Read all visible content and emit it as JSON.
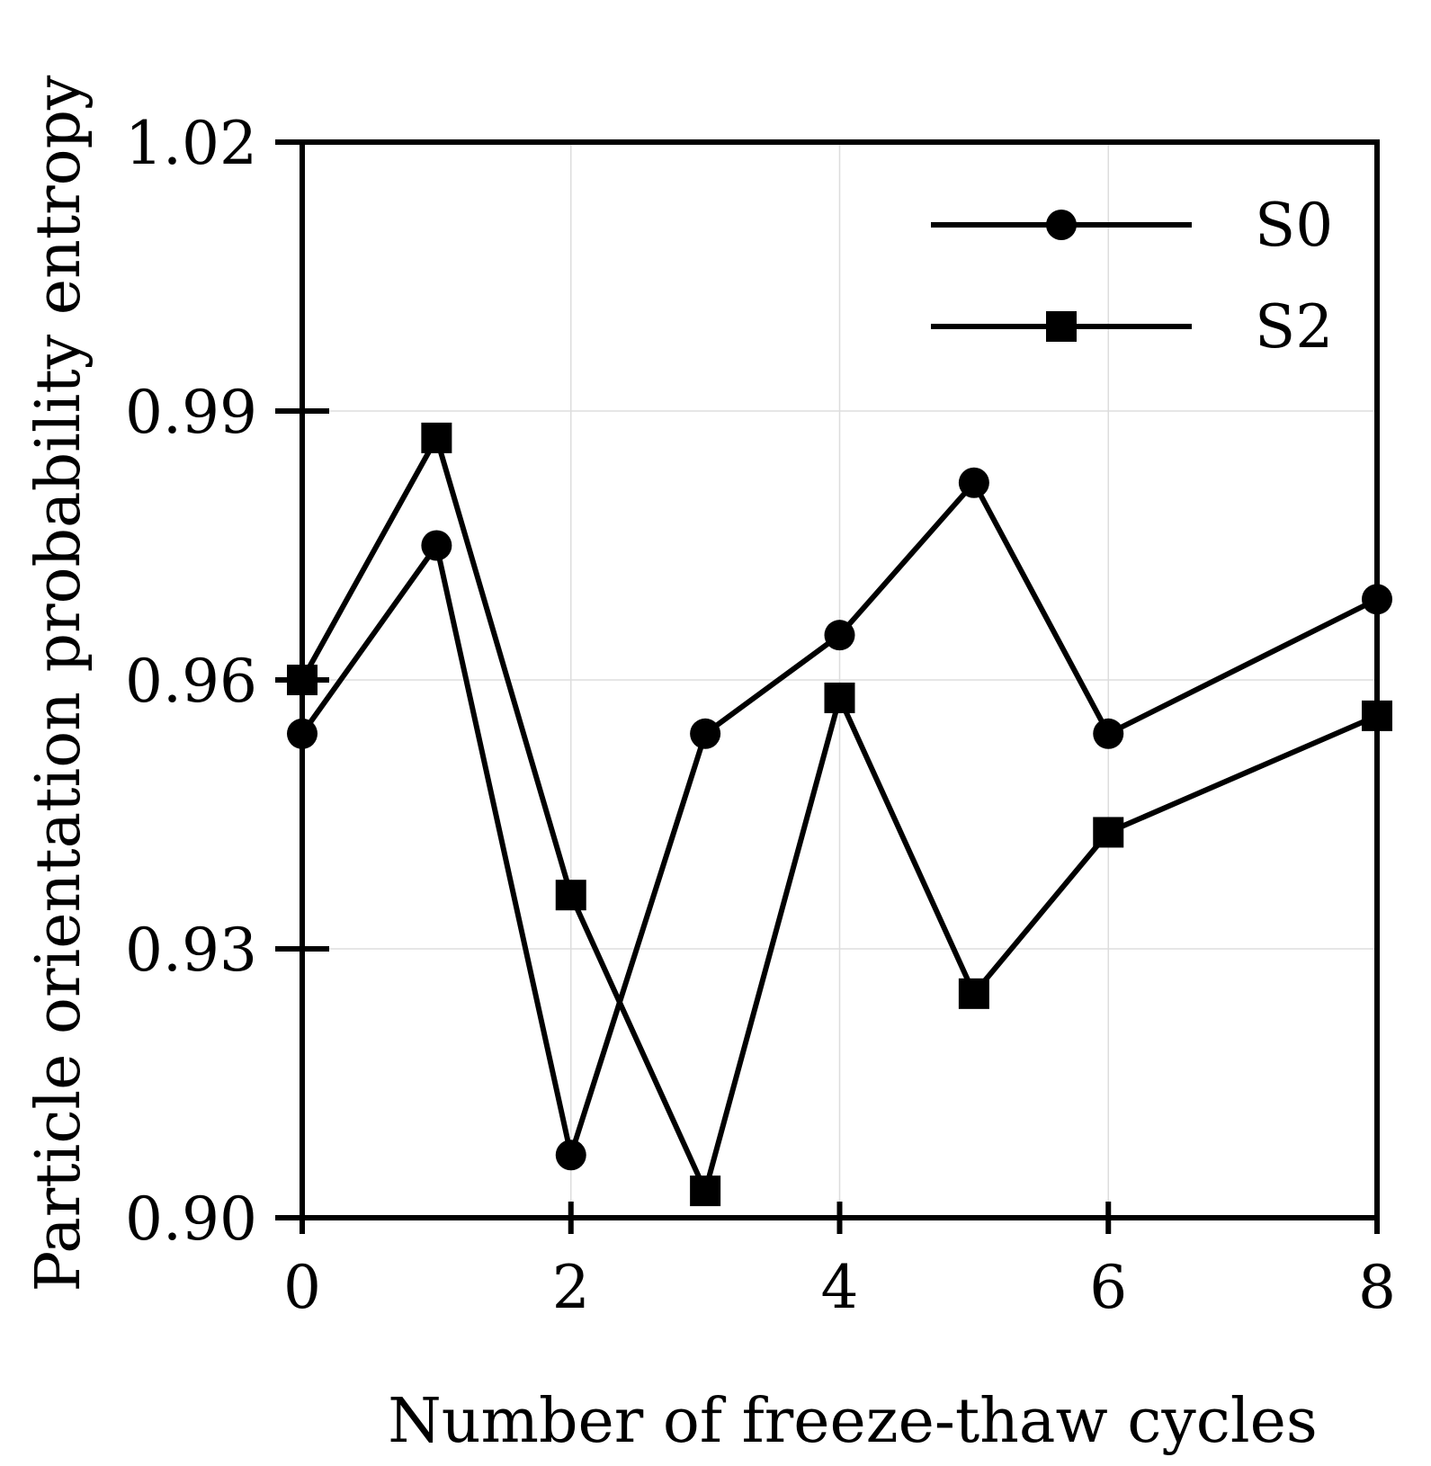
{
  "chart_data": {
    "type": "line",
    "title": "",
    "xlabel": "Number of freeze-thaw cycles",
    "ylabel": "Particle orientation probability entropy",
    "xlim": [
      0,
      8
    ],
    "ylim": [
      0.9,
      1.02
    ],
    "x_ticks": [
      0,
      2,
      4,
      6,
      8
    ],
    "x_tick_labels": [
      "0",
      "2",
      "4",
      "6",
      "8"
    ],
    "y_ticks": [
      0.9,
      0.93,
      0.96,
      0.99,
      1.02
    ],
    "y_tick_labels": [
      "0.90",
      "0.93",
      "0.96",
      "0.99",
      "1.02"
    ],
    "grid": true,
    "legend_position": "top-right",
    "series": [
      {
        "name": "S0",
        "marker": "circle",
        "x": [
          0,
          1,
          2,
          3,
          4,
          5,
          6,
          8
        ],
        "values": [
          0.954,
          0.975,
          0.907,
          0.954,
          0.965,
          0.982,
          0.954,
          0.969
        ]
      },
      {
        "name": "S2",
        "marker": "square",
        "x": [
          0,
          1,
          2,
          3,
          4,
          5,
          6,
          8
        ],
        "values": [
          0.96,
          0.987,
          0.936,
          0.903,
          0.958,
          0.925,
          0.943,
          0.956
        ]
      }
    ],
    "colors": {
      "line": "#000000",
      "grid": "#dddddd"
    }
  }
}
